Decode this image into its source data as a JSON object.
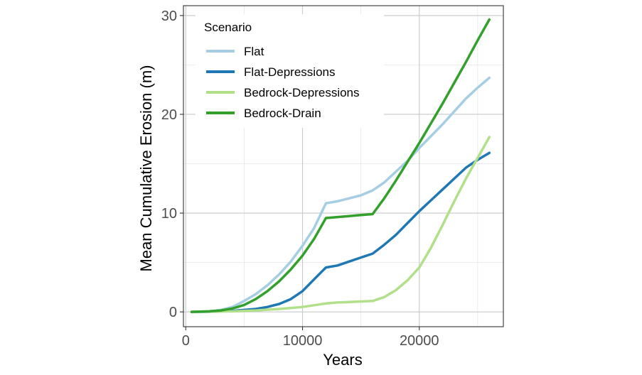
{
  "chart_data": {
    "type": "line",
    "title": "",
    "xlabel": "Years",
    "ylabel": "Mean Cumulative Erosion (m)",
    "xlim": [
      -200,
      27200
    ],
    "ylim": [
      -1.5,
      31
    ],
    "x_ticks": [
      0,
      10000,
      20000
    ],
    "x_tick_labels": [
      "0",
      "10000",
      "20000"
    ],
    "y_ticks": [
      0,
      10,
      20,
      30
    ],
    "y_tick_labels": [
      "0",
      "10",
      "20",
      "30"
    ],
    "grid": true,
    "legend": {
      "title": "Scenario",
      "position": "top-left"
    },
    "series": [
      {
        "name": "Flat",
        "color": "#a6cee3",
        "points": [
          [
            500,
            0
          ],
          [
            2000,
            0.05
          ],
          [
            3000,
            0.2
          ],
          [
            4000,
            0.5
          ],
          [
            5000,
            1.1
          ],
          [
            6000,
            1.8
          ],
          [
            7000,
            2.7
          ],
          [
            8000,
            3.8
          ],
          [
            9000,
            5.1
          ],
          [
            10000,
            6.7
          ],
          [
            11000,
            8.5
          ],
          [
            12000,
            11.0
          ],
          [
            13000,
            11.2
          ],
          [
            14000,
            11.5
          ],
          [
            15000,
            11.8
          ],
          [
            16000,
            12.3
          ],
          [
            17000,
            13.1
          ],
          [
            18000,
            14.2
          ],
          [
            19000,
            15.3
          ],
          [
            20000,
            16.6
          ],
          [
            21000,
            17.8
          ],
          [
            22000,
            19.0
          ],
          [
            23000,
            20.3
          ],
          [
            24000,
            21.6
          ],
          [
            25000,
            22.7
          ],
          [
            26000,
            23.7
          ]
        ]
      },
      {
        "name": "Flat-Depressions",
        "color": "#1f78b4",
        "points": [
          [
            500,
            0
          ],
          [
            2000,
            0.02
          ],
          [
            4000,
            0.1
          ],
          [
            6000,
            0.3
          ],
          [
            7000,
            0.5
          ],
          [
            8000,
            0.8
          ],
          [
            9000,
            1.3
          ],
          [
            10000,
            2.1
          ],
          [
            11000,
            3.3
          ],
          [
            12000,
            4.5
          ],
          [
            13000,
            4.7
          ],
          [
            14000,
            5.1
          ],
          [
            15000,
            5.5
          ],
          [
            16000,
            5.9
          ],
          [
            17000,
            6.8
          ],
          [
            18000,
            7.8
          ],
          [
            19000,
            9.0
          ],
          [
            20000,
            10.2
          ],
          [
            21000,
            11.3
          ],
          [
            22000,
            12.4
          ],
          [
            23000,
            13.5
          ],
          [
            24000,
            14.6
          ],
          [
            25000,
            15.4
          ],
          [
            26000,
            16.1
          ]
        ]
      },
      {
        "name": "Bedrock-Depressions",
        "color": "#b2df8a",
        "points": [
          [
            500,
            0
          ],
          [
            4000,
            0.05
          ],
          [
            6000,
            0.15
          ],
          [
            8000,
            0.3
          ],
          [
            10000,
            0.5
          ],
          [
            12000,
            0.85
          ],
          [
            13000,
            0.95
          ],
          [
            14000,
            1.0
          ],
          [
            15000,
            1.05
          ],
          [
            16000,
            1.1
          ],
          [
            17000,
            1.5
          ],
          [
            18000,
            2.2
          ],
          [
            19000,
            3.2
          ],
          [
            20000,
            4.5
          ],
          [
            21000,
            6.5
          ],
          [
            22000,
            8.8
          ],
          [
            23000,
            11.2
          ],
          [
            24000,
            13.5
          ],
          [
            25000,
            15.6
          ],
          [
            26000,
            17.7
          ]
        ]
      },
      {
        "name": "Bedrock-Drain",
        "color": "#33a02c",
        "points": [
          [
            500,
            0
          ],
          [
            2000,
            0.05
          ],
          [
            3000,
            0.15
          ],
          [
            4000,
            0.35
          ],
          [
            5000,
            0.7
          ],
          [
            6000,
            1.3
          ],
          [
            7000,
            2.1
          ],
          [
            8000,
            3.1
          ],
          [
            9000,
            4.3
          ],
          [
            10000,
            5.7
          ],
          [
            11000,
            7.4
          ],
          [
            12000,
            9.5
          ],
          [
            13000,
            9.6
          ],
          [
            14000,
            9.7
          ],
          [
            15000,
            9.8
          ],
          [
            16000,
            9.9
          ],
          [
            17000,
            11.5
          ],
          [
            18000,
            13.3
          ],
          [
            19000,
            15.2
          ],
          [
            20000,
            17.1
          ],
          [
            21000,
            19.1
          ],
          [
            22000,
            21.1
          ],
          [
            23000,
            23.2
          ],
          [
            24000,
            25.3
          ],
          [
            25000,
            27.5
          ],
          [
            26000,
            29.6
          ]
        ]
      }
    ]
  }
}
